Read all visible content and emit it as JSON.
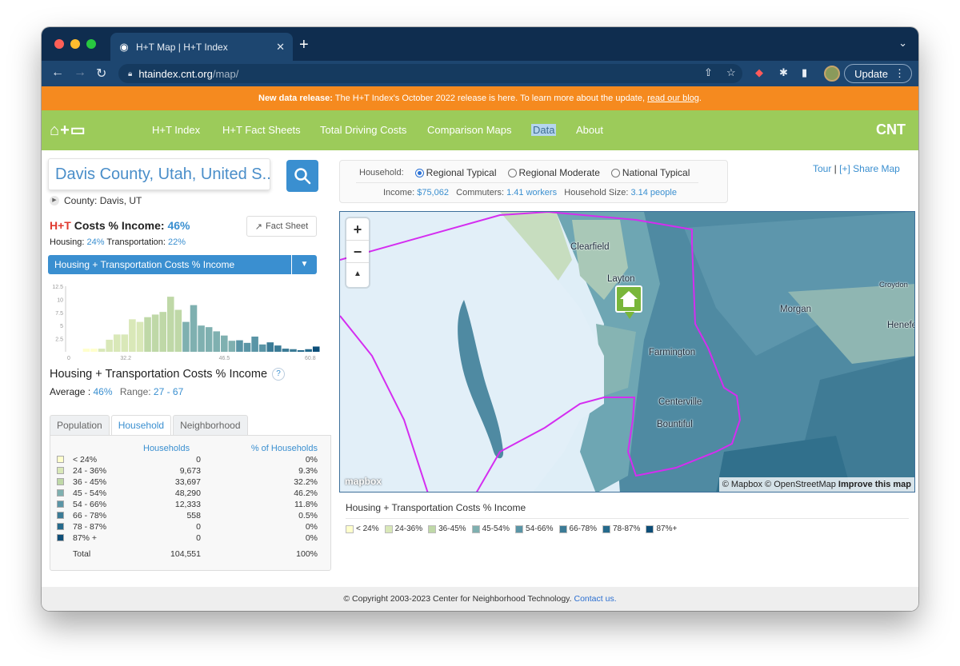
{
  "browser": {
    "tab_title": "H+T Map | H+T Index",
    "url_host": "htaindex.cnt.org",
    "url_path": "/map/",
    "update_label": "Update"
  },
  "banner": {
    "bold": "New data release:",
    "text": " The H+T Index's October 2022 release is here. To learn more about the update, ",
    "link": "read our blog",
    "tail": "."
  },
  "nav": {
    "items": [
      "H+T Index",
      "H+T Fact Sheets",
      "Total Driving Costs",
      "Comparison Maps",
      "Data",
      "About"
    ],
    "active": "Data",
    "brand": "CNT"
  },
  "search": {
    "value": "Davis County, Utah, United S..."
  },
  "county": "County: Davis, UT",
  "summary": {
    "title_red": "H+T",
    "title_rest": " Costs % Income: ",
    "title_value": "46%",
    "fact_sheet_label": "Fact Sheet",
    "housing_label": "Housing:",
    "housing_value": "24%",
    "transport_label": "Transportation:",
    "transport_value": "22%",
    "selector": "Housing + Transportation Costs % Income"
  },
  "histogram": {
    "y_ticks": [
      "12.5",
      "10",
      "7.5",
      "5",
      "2.5"
    ],
    "x_ticks": [
      "0",
      "32.2",
      "46.5",
      "60.8"
    ],
    "values": [
      0,
      0,
      0.6,
      0.6,
      0.6,
      2.3,
      3.3,
      3.3,
      6.2,
      5.7,
      6.6,
      7.1,
      7.6,
      10.5,
      8.0,
      5.7,
      8.9,
      5.0,
      4.7,
      3.9,
      3.1,
      2.1,
      2.2,
      1.7,
      2.9,
      1.4,
      1.8,
      1.2,
      0.6,
      0.5,
      0.3,
      0.5,
      1.0
    ],
    "band_colors": [
      "#ffffcc",
      "#d9e8b8",
      "#bfd8a7",
      "#7fb0b0",
      "#5a95a6",
      "#3b7b96",
      "#256a8c",
      "#0d4e78"
    ]
  },
  "metric": {
    "title": "Housing + Transportation Costs % Income",
    "avg_label": "Average :",
    "avg_value": "46%",
    "range_label": "Range:",
    "range_value": "27 - 67"
  },
  "panel_tabs": [
    "Population",
    "Household",
    "Neighborhood"
  ],
  "active_panel_tab": "Household",
  "table": {
    "headers": [
      "Households",
      "% of Households"
    ],
    "rows": [
      {
        "label": "< 24%",
        "households": "0",
        "pct": "0%",
        "color": "#ffffcc"
      },
      {
        "label": "24 - 36%",
        "households": "9,673",
        "pct": "9.3%",
        "color": "#d9e8b8"
      },
      {
        "label": "36 - 45%",
        "households": "33,697",
        "pct": "32.2%",
        "color": "#bfd8a7"
      },
      {
        "label": "45 - 54%",
        "households": "48,290",
        "pct": "46.2%",
        "color": "#7fb0b0"
      },
      {
        "label": "54 - 66%",
        "households": "12,333",
        "pct": "11.8%",
        "color": "#5a95a6"
      },
      {
        "label": "66 - 78%",
        "households": "558",
        "pct": "0.5%",
        "color": "#3b7b96"
      },
      {
        "label": "78 - 87%",
        "households": "0",
        "pct": "0%",
        "color": "#256a8c"
      },
      {
        "label": "87% +",
        "households": "0",
        "pct": "0%",
        "color": "#0d4e78"
      }
    ],
    "total_label": "Total",
    "total_households": "104,551",
    "total_pct": "100%"
  },
  "household": {
    "label": "Household:",
    "options": [
      "Regional Typical",
      "Regional Moderate",
      "National Typical"
    ],
    "selected": "Regional Typical",
    "income_label": "Income:",
    "income_value": "$75,062",
    "commuters_label": "Commuters:",
    "commuters_value": "1.41 workers",
    "size_label": "Household Size:",
    "size_value": "3.14 people"
  },
  "tour": {
    "tour": "Tour",
    "sep": " | ",
    "share": "[+] Share Map"
  },
  "map": {
    "cities": [
      "Clearfield",
      "Layton",
      "Morgan",
      "Croydon",
      "Henefer",
      "Farmington",
      "Centerville",
      "Bountiful"
    ],
    "attribution_1": "© Mapbox © OpenStreetMap",
    "attribution_2": "Improve this map",
    "logo": "mapbox"
  },
  "legend": {
    "title": "Housing + Transportation Costs % Income",
    "items": [
      "< 24%",
      "24-36%",
      "36-45%",
      "45-54%",
      "54-66%",
      "66-78%",
      "78-87%",
      "87%+"
    ]
  },
  "footer": {
    "text": "© Copyright 2003-2023 Center for Neighborhood Technology. ",
    "link": "Contact us."
  }
}
